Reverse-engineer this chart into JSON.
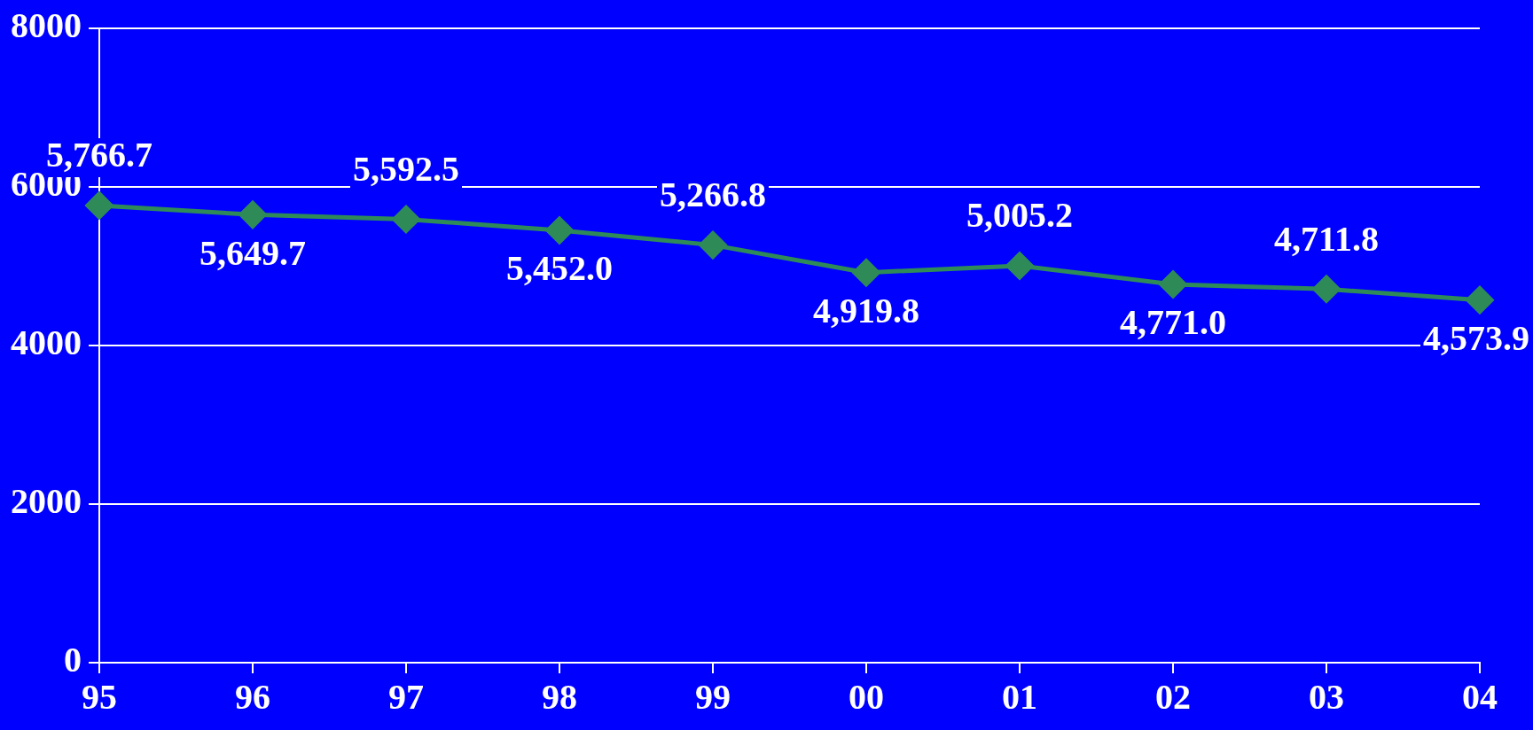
{
  "chart_data": {
    "type": "line",
    "categories": [
      "95",
      "96",
      "97",
      "98",
      "99",
      "00",
      "01",
      "02",
      "03",
      "04"
    ],
    "series": [
      {
        "color": "#2e8b57",
        "values": [
          5766.7,
          5649.7,
          5592.5,
          5452.0,
          5266.8,
          4919.8,
          5005.2,
          4771.0,
          4711.8,
          4573.9
        ]
      }
    ],
    "value_labels": [
      "5,766.7",
      "5,649.7",
      "5,592.5",
      "5,452.0",
      "5,266.8",
      "4,919.8",
      "5,005.2",
      "4,771.0",
      "4,711.8",
      "4,573.9"
    ],
    "ylim": [
      0,
      8000
    ],
    "yticks": [
      0,
      2000,
      4000,
      6000,
      8000
    ],
    "grid": "y",
    "marker": "diamond",
    "line_style": "solid",
    "legend": false
  }
}
